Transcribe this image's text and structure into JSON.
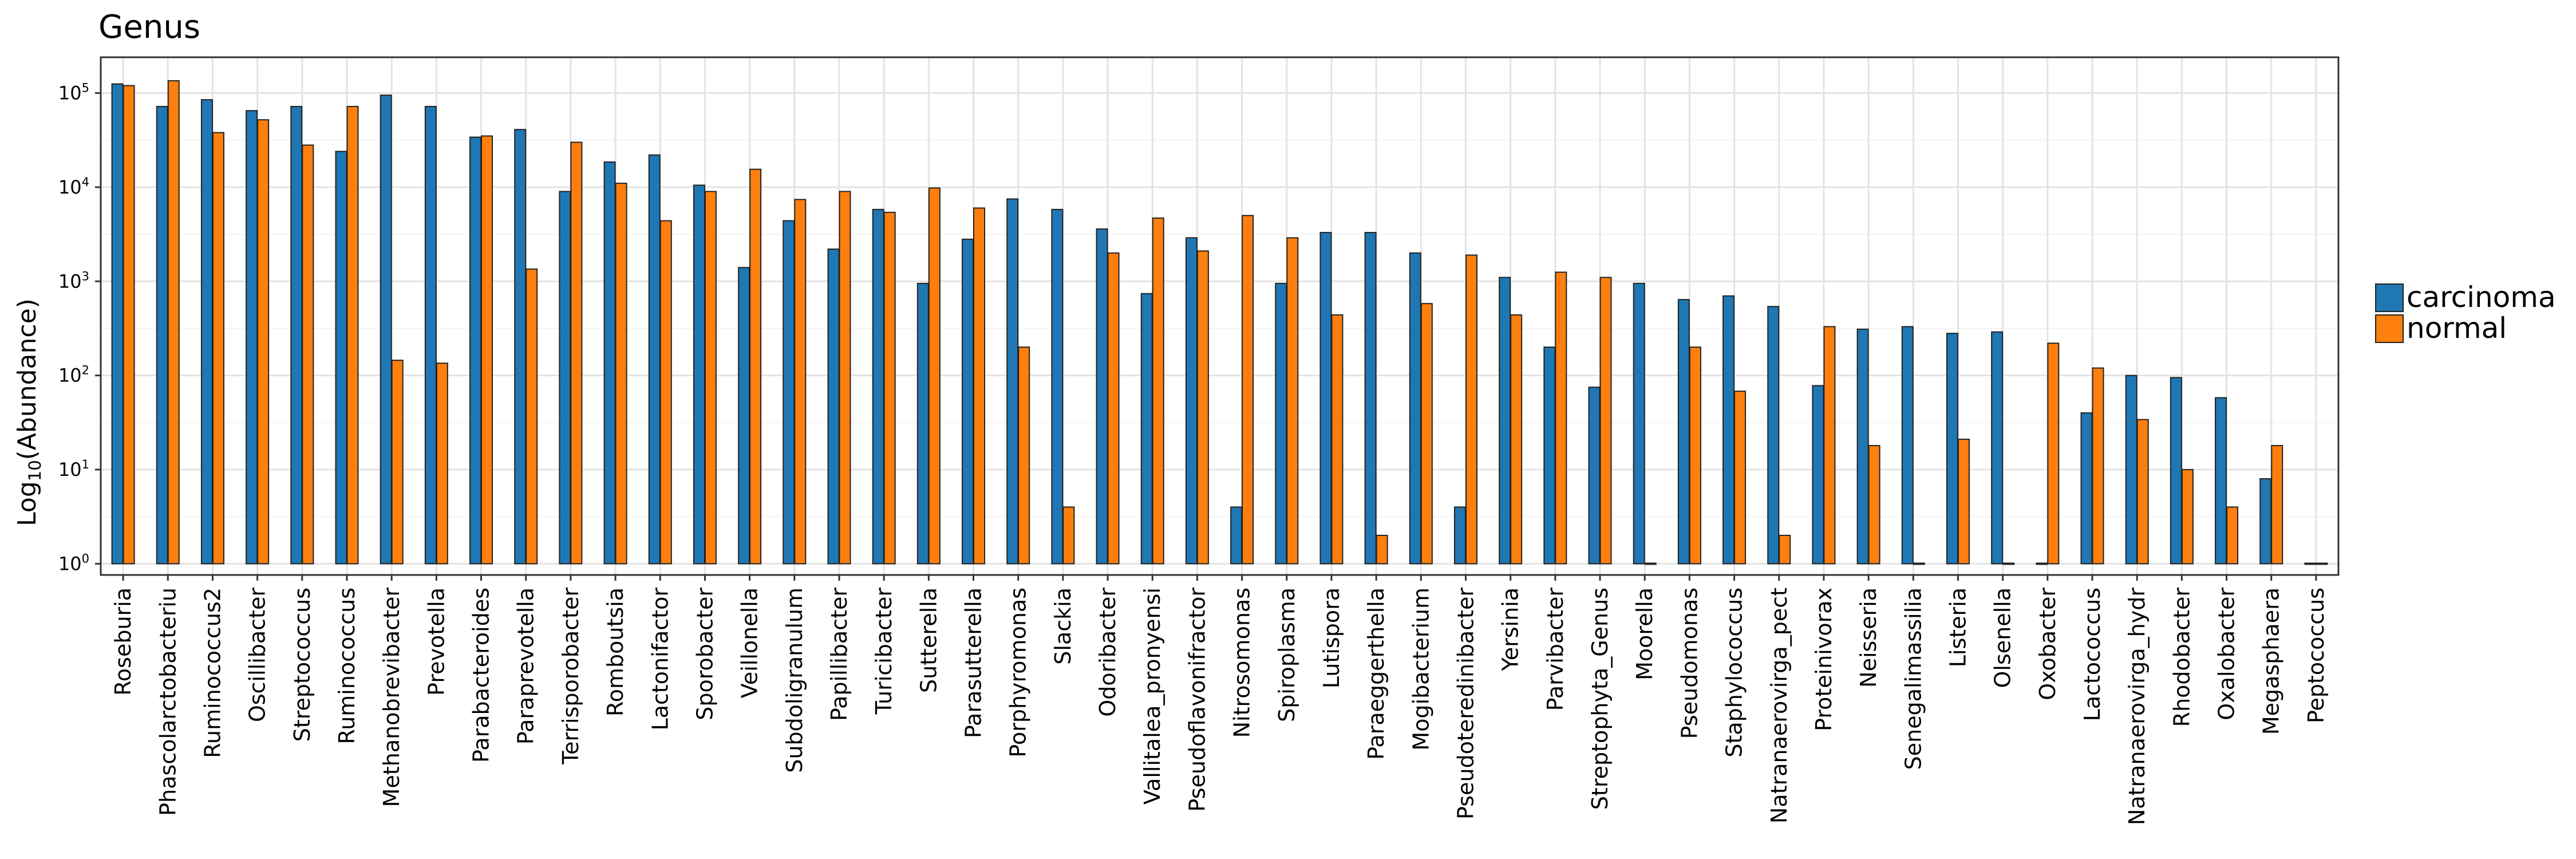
{
  "chart_data": {
    "type": "bar",
    "title": "Genus",
    "ylabel_base": "Log",
    "ylabel_sub": "10",
    "ylabel_rest": "(Abundance)",
    "xlabel": "",
    "yscale": "log10",
    "ylim": [
      0.76,
      240000
    ],
    "bar_baseline": 1,
    "y_ticks": [
      {
        "base": "10",
        "exp": "0",
        "value": 1
      },
      {
        "base": "10",
        "exp": "1",
        "value": 10
      },
      {
        "base": "10",
        "exp": "2",
        "value": 100
      },
      {
        "base": "10",
        "exp": "3",
        "value": 1000
      },
      {
        "base": "10",
        "exp": "4",
        "value": 10000
      },
      {
        "base": "10",
        "exp": "5",
        "value": 100000
      }
    ],
    "grid": true,
    "legend_position": "right",
    "categories": [
      "Roseburia",
      "Phascolarctobacteriu",
      "Ruminococcus2",
      "Oscillibacter",
      "Streptococcus",
      "Ruminococcus",
      "Methanobrevibacter",
      "Prevotella",
      "Parabacteroides",
      "Paraprevotella",
      "Terrisporobacter",
      "Romboutsia",
      "Lactonifactor",
      "Sporobacter",
      "Veillonella",
      "Subdoligranulum",
      "Papillibacter",
      "Turicibacter",
      "Sutterella",
      "Parasutterella",
      "Porphyromonas",
      "Slackia",
      "Odoribacter",
      "Vallitalea_pronyensi",
      "Pseudoflavonifractor",
      "Nitrosomonas",
      "Spiroplasma",
      "Lutispora",
      "Paraeggerthella",
      "Mogibacterium",
      "Pseudoteredinibacter",
      "Yersinia",
      "Parvibacter",
      "Streptophyta_Genus",
      "Moorella",
      "Pseudomonas",
      "Staphylococcus",
      "Natranaerovirga_pect",
      "Proteinivorax",
      "Neisseria",
      "Senegalimassilia",
      "Listeria",
      "Olsenella",
      "Oxobacter",
      "Lactococcus",
      "Natranaerovirga_hydr",
      "Rhodobacter",
      "Oxalobacter",
      "Megasphaera",
      "Peptococcus"
    ],
    "series": [
      {
        "name": "carcinoma",
        "color": "#1f77b4",
        "values": [
          125000,
          72000,
          85000,
          65000,
          72000,
          24000,
          95000,
          72000,
          34000,
          41000,
          9000,
          18500,
          22000,
          10500,
          1400,
          4400,
          2200,
          5800,
          950,
          2800,
          7500,
          5800,
          3600,
          740,
          2900,
          4,
          950,
          3300,
          3300,
          2000,
          4,
          1100,
          200,
          75,
          950,
          640,
          700,
          540,
          78,
          310,
          330,
          280,
          290,
          1,
          40,
          100,
          95,
          58,
          8,
          1
        ]
      },
      {
        "name": "normal",
        "color": "#ff7f0e",
        "values": [
          120000,
          135000,
          38000,
          52000,
          28000,
          72000,
          145,
          135,
          35000,
          1350,
          30000,
          11000,
          4400,
          9000,
          15500,
          7400,
          9000,
          5400,
          9800,
          6000,
          200,
          4,
          2000,
          4700,
          2100,
          5000,
          2900,
          440,
          2,
          580,
          1900,
          440,
          1250,
          1100,
          1,
          200,
          68,
          2,
          330,
          18,
          1,
          21,
          1,
          220,
          120,
          34,
          10,
          4,
          18,
          1
        ]
      }
    ]
  }
}
